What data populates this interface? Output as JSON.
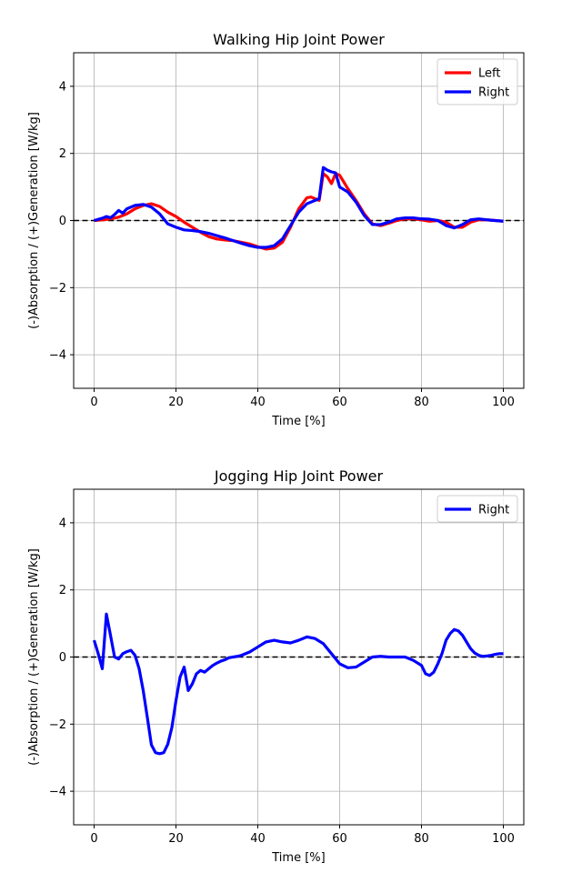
{
  "chart_data": [
    {
      "type": "line",
      "title": "Walking Hip Joint Power",
      "xlabel": "Time [%]",
      "ylabel": "(-)Absorption / (+)Generation [W/kg]",
      "xlim": [
        -5,
        105
      ],
      "ylim": [
        -5,
        5
      ],
      "xticks": [
        0,
        20,
        40,
        60,
        80,
        100
      ],
      "yticks": [
        -4,
        -2,
        0,
        2,
        4
      ],
      "grid": true,
      "legend": "top-right",
      "zero_line": 0,
      "series": [
        {
          "name": "Left",
          "color": "#ff0000",
          "x": [
            0,
            2,
            4,
            6,
            8,
            10,
            12,
            14,
            16,
            18,
            20,
            22,
            24,
            26,
            28,
            30,
            32,
            34,
            36,
            38,
            40,
            42,
            44,
            46,
            48,
            50,
            52,
            53,
            54,
            55,
            56,
            57,
            58,
            59,
            60,
            62,
            64,
            66,
            68,
            70,
            72,
            74,
            76,
            78,
            80,
            82,
            84,
            86,
            88,
            90,
            92,
            94,
            96,
            98,
            100
          ],
          "y": [
            0.0,
            0.02,
            0.05,
            0.1,
            0.2,
            0.35,
            0.45,
            0.5,
            0.42,
            0.25,
            0.12,
            -0.05,
            -0.2,
            -0.35,
            -0.48,
            -0.55,
            -0.58,
            -0.6,
            -0.65,
            -0.7,
            -0.78,
            -0.85,
            -0.82,
            -0.65,
            -0.2,
            0.35,
            0.68,
            0.7,
            0.65,
            0.6,
            1.4,
            1.3,
            1.1,
            1.4,
            1.35,
            0.95,
            0.6,
            0.2,
            -0.1,
            -0.15,
            -0.08,
            0.0,
            0.05,
            0.05,
            0.02,
            -0.02,
            0.0,
            -0.05,
            -0.2,
            -0.2,
            -0.05,
            0.02,
            0.02,
            0.0,
            -0.02
          ]
        },
        {
          "name": "Right",
          "color": "#0000ff",
          "x": [
            0,
            2,
            3,
            4,
            5,
            6,
            7,
            8,
            10,
            12,
            14,
            16,
            18,
            20,
            22,
            24,
            26,
            28,
            30,
            32,
            34,
            36,
            38,
            40,
            42,
            44,
            46,
            48,
            50,
            52,
            54,
            55,
            56,
            57,
            58,
            59,
            60,
            62,
            64,
            66,
            68,
            70,
            72,
            74,
            76,
            78,
            80,
            82,
            84,
            86,
            88,
            90,
            92,
            94,
            96,
            98,
            100
          ],
          "y": [
            0.0,
            0.07,
            0.12,
            0.08,
            0.18,
            0.3,
            0.22,
            0.35,
            0.45,
            0.48,
            0.4,
            0.2,
            -0.1,
            -0.2,
            -0.28,
            -0.3,
            -0.33,
            -0.38,
            -0.45,
            -0.52,
            -0.6,
            -0.68,
            -0.75,
            -0.8,
            -0.8,
            -0.75,
            -0.55,
            -0.15,
            0.25,
            0.5,
            0.6,
            0.65,
            1.58,
            1.5,
            1.45,
            1.42,
            1.0,
            0.85,
            0.55,
            0.15,
            -0.12,
            -0.12,
            -0.05,
            0.05,
            0.08,
            0.08,
            0.05,
            0.04,
            0.0,
            -0.15,
            -0.22,
            -0.12,
            0.02,
            0.05,
            0.02,
            0.0,
            -0.02
          ]
        }
      ]
    },
    {
      "type": "line",
      "title": "Jogging Hip Joint Power",
      "xlabel": "Time [%]",
      "ylabel": "(-)Absorption / (+)Generation [W/kg]",
      "xlim": [
        -5,
        105
      ],
      "ylim": [
        -5,
        5
      ],
      "xticks": [
        0,
        20,
        40,
        60,
        80,
        100
      ],
      "yticks": [
        -4,
        -2,
        0,
        2,
        4
      ],
      "grid": true,
      "legend": "top-right",
      "zero_line": 0,
      "series": [
        {
          "name": "Right",
          "color": "#0000ff",
          "x": [
            0,
            1,
            2,
            3,
            4,
            5,
            6,
            7,
            8,
            9,
            10,
            11,
            12,
            13,
            14,
            15,
            16,
            17,
            18,
            19,
            20,
            21,
            22,
            23,
            24,
            25,
            26,
            27,
            28,
            29,
            30,
            31,
            32,
            33,
            34,
            35,
            36,
            38,
            40,
            42,
            44,
            46,
            48,
            50,
            52,
            54,
            56,
            58,
            60,
            62,
            64,
            66,
            68,
            70,
            72,
            74,
            76,
            78,
            80,
            81,
            82,
            83,
            84,
            85,
            86,
            87,
            88,
            89,
            90,
            91,
            92,
            93,
            94,
            95,
            96,
            97,
            98,
            99,
            100
          ],
          "y": [
            0.5,
            0.1,
            -0.35,
            1.28,
            0.65,
            0.0,
            -0.06,
            0.1,
            0.16,
            0.2,
            0.05,
            -0.35,
            -1.0,
            -1.8,
            -2.62,
            -2.85,
            -2.88,
            -2.85,
            -2.6,
            -2.1,
            -1.3,
            -0.6,
            -0.3,
            -1.0,
            -0.8,
            -0.5,
            -0.4,
            -0.45,
            -0.35,
            -0.25,
            -0.18,
            -0.12,
            -0.08,
            -0.02,
            0.0,
            0.02,
            0.05,
            0.15,
            0.3,
            0.45,
            0.5,
            0.45,
            0.42,
            0.5,
            0.6,
            0.55,
            0.4,
            0.1,
            -0.2,
            -0.32,
            -0.3,
            -0.15,
            0.0,
            0.02,
            0.0,
            0.0,
            0.0,
            -0.1,
            -0.25,
            -0.5,
            -0.55,
            -0.45,
            -0.2,
            0.1,
            0.5,
            0.7,
            0.82,
            0.78,
            0.65,
            0.45,
            0.25,
            0.12,
            0.05,
            0.02,
            0.03,
            0.05,
            0.08,
            0.1,
            0.1
          ]
        }
      ]
    }
  ]
}
